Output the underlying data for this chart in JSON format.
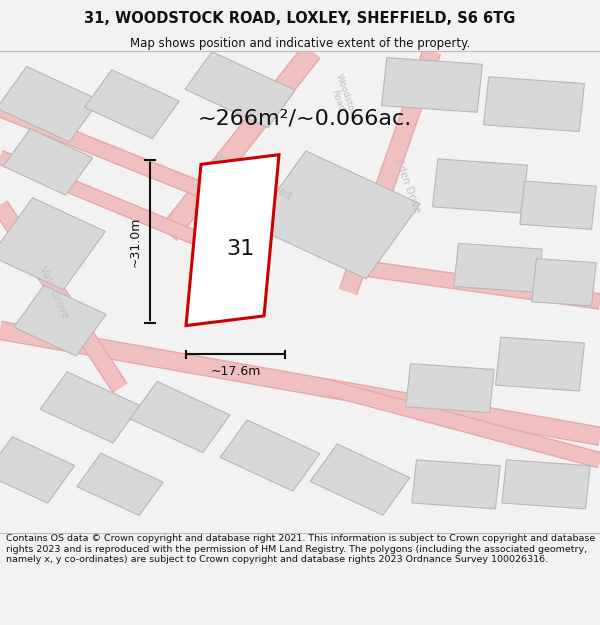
{
  "title": "31, WOODSTOCK ROAD, LOXLEY, SHEFFIELD, S6 6TG",
  "subtitle": "Map shows position and indicative extent of the property.",
  "area_text": "~266m²/~0.066ac.",
  "dim_width": "~17.6m",
  "dim_height": "~31.0m",
  "plot_number": "31",
  "footer": "Contains OS data © Crown copyright and database right 2021. This information is subject to Crown copyright and database rights 2023 and is reproduced with the permission of HM Land Registry. The polygons (including the associated geometry, namely x, y co-ordinates) are subject to Crown copyright and database rights 2023 Ordnance Survey 100026316.",
  "bg_color": "#f2f2f2",
  "map_bg": "#f8f8f8",
  "building_color": "#d8d8d8",
  "building_edge": "#c0c0c0",
  "road_fill": "#f2c8c8",
  "road_edge": "#e09090",
  "plot_color": "#ffffff",
  "plot_edge": "#cc0000",
  "street_label_color": "#c0c0c0",
  "dim_color": "#111111",
  "title_color": "#111111",
  "footer_color": "#111111",
  "road_lw": 8,
  "road_alpha": 1.0
}
